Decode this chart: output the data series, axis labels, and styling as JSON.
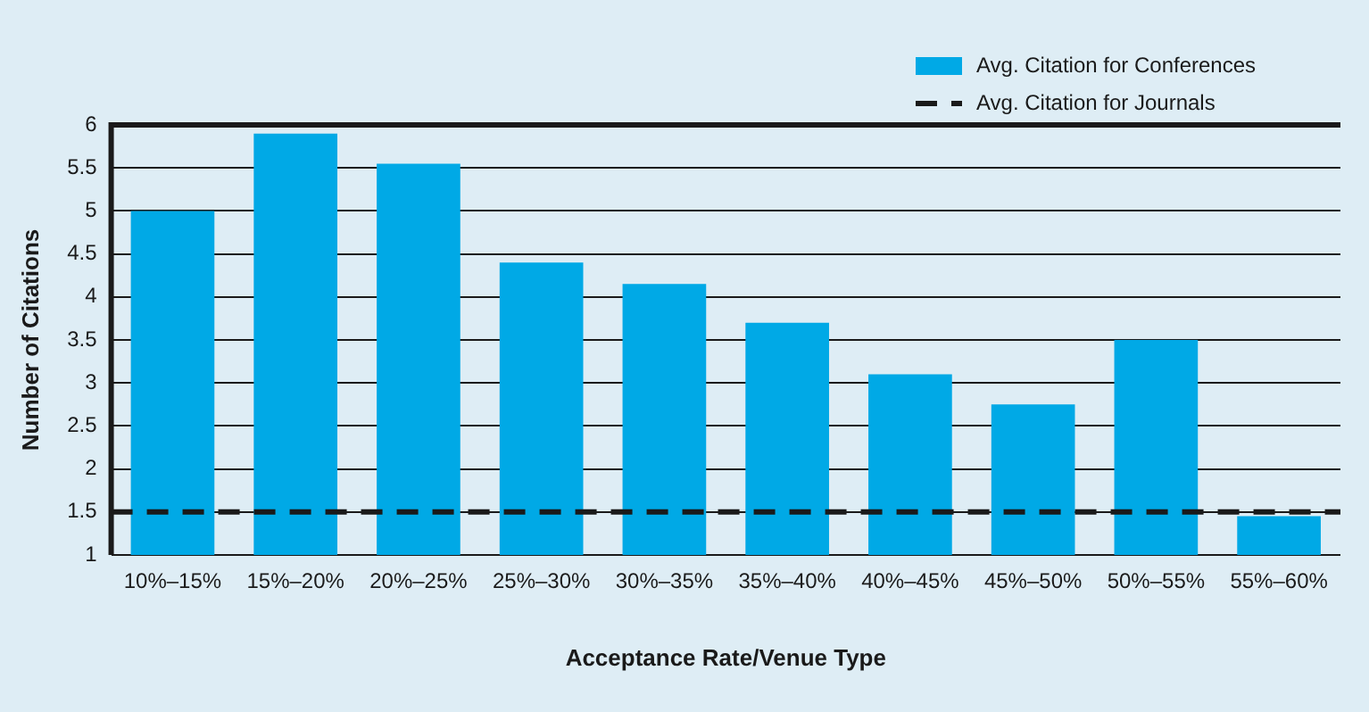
{
  "chart_data": {
    "type": "bar",
    "xlabel": "Acceptance Rate/Venue Type",
    "ylabel": "Number of Citations",
    "categories": [
      "10%–15%",
      "15%–20%",
      "20%–25%",
      "25%–30%",
      "30%–35%",
      "35%–40%",
      "40%–45%",
      "45%–50%",
      "50%–55%",
      "55%–60%"
    ],
    "series": [
      {
        "name": "Avg. Citation for Conferences",
        "color": "#00a9e6",
        "values": [
          5.0,
          5.9,
          5.55,
          4.4,
          4.15,
          3.7,
          3.1,
          2.75,
          3.5,
          1.45
        ]
      }
    ],
    "ref_lines": [
      {
        "axis": "y",
        "value": 1.5,
        "label": "Avg. Citation for Journals",
        "color": "#1a1a1a",
        "line_style": "dashed"
      }
    ],
    "ylim": [
      1,
      6
    ],
    "yticks": [
      1,
      1.5,
      2,
      2.5,
      3,
      3.5,
      4,
      4.5,
      5,
      5.5,
      6
    ],
    "grid": "y",
    "legend": "top right"
  }
}
